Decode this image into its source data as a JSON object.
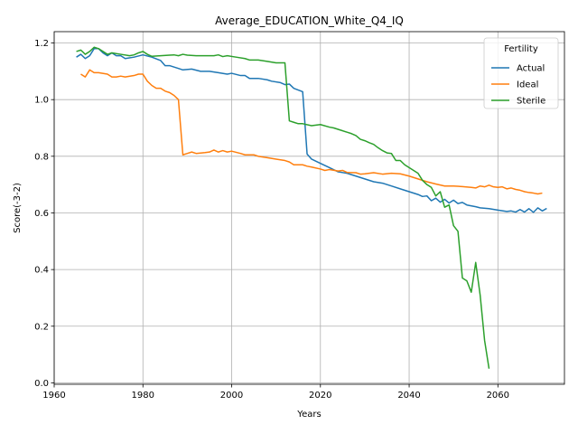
{
  "chart_data": {
    "type": "line",
    "title": "Average_EDUCATION_White_Q4_IQ",
    "xlabel": "Years",
    "ylabel": "Score(-3-2)",
    "xlim": [
      1960,
      2075
    ],
    "ylim": [
      -0.005,
      1.24
    ],
    "xticks": [
      1960,
      1980,
      2000,
      2020,
      2040,
      2060
    ],
    "yticks": [
      0.0,
      0.2,
      0.4,
      0.6,
      0.8,
      1.0,
      1.2
    ],
    "grid": true,
    "legend": {
      "title": "Fertility",
      "placement": "top-right"
    },
    "series": [
      {
        "name": "Actual",
        "color": "#1f77b4",
        "points": [
          [
            1965,
            1.15
          ],
          [
            1966,
            1.16
          ],
          [
            1967,
            1.145
          ],
          [
            1968,
            1.155
          ],
          [
            1969,
            1.18
          ],
          [
            1970,
            1.18
          ],
          [
            1971,
            1.165
          ],
          [
            1972,
            1.155
          ],
          [
            1973,
            1.165
          ],
          [
            1974,
            1.155
          ],
          [
            1975,
            1.155
          ],
          [
            1976,
            1.145
          ],
          [
            1978,
            1.15
          ],
          [
            1980,
            1.158
          ],
          [
            1982,
            1.15
          ],
          [
            1984,
            1.138
          ],
          [
            1985,
            1.12
          ],
          [
            1986,
            1.12
          ],
          [
            1988,
            1.11
          ],
          [
            1989,
            1.105
          ],
          [
            1991,
            1.108
          ],
          [
            1993,
            1.1
          ],
          [
            1995,
            1.1
          ],
          [
            1997,
            1.095
          ],
          [
            1999,
            1.09
          ],
          [
            2000,
            1.093
          ],
          [
            2002,
            1.085
          ],
          [
            2003,
            1.085
          ],
          [
            2004,
            1.075
          ],
          [
            2006,
            1.075
          ],
          [
            2008,
            1.07
          ],
          [
            2009,
            1.065
          ],
          [
            2011,
            1.06
          ],
          [
            2012,
            1.053
          ],
          [
            2013,
            1.055
          ],
          [
            2014,
            1.04
          ],
          [
            2016,
            1.028
          ],
          [
            2017,
            0.808
          ],
          [
            2018,
            0.79
          ],
          [
            2020,
            0.775
          ],
          [
            2022,
            0.76
          ],
          [
            2024,
            0.745
          ],
          [
            2026,
            0.74
          ],
          [
            2028,
            0.73
          ],
          [
            2030,
            0.72
          ],
          [
            2032,
            0.71
          ],
          [
            2034,
            0.705
          ],
          [
            2036,
            0.695
          ],
          [
            2038,
            0.685
          ],
          [
            2040,
            0.675
          ],
          [
            2042,
            0.665
          ],
          [
            2043,
            0.658
          ],
          [
            2044,
            0.66
          ],
          [
            2045,
            0.643
          ],
          [
            2046,
            0.652
          ],
          [
            2047,
            0.638
          ],
          [
            2048,
            0.648
          ],
          [
            2049,
            0.635
          ],
          [
            2050,
            0.645
          ],
          [
            2051,
            0.633
          ],
          [
            2052,
            0.637
          ],
          [
            2053,
            0.628
          ],
          [
            2055,
            0.622
          ],
          [
            2056,
            0.618
          ],
          [
            2058,
            0.615
          ],
          [
            2060,
            0.61
          ],
          [
            2062,
            0.605
          ],
          [
            2063,
            0.607
          ],
          [
            2064,
            0.603
          ],
          [
            2065,
            0.612
          ],
          [
            2066,
            0.603
          ],
          [
            2067,
            0.615
          ],
          [
            2068,
            0.602
          ],
          [
            2069,
            0.618
          ],
          [
            2070,
            0.607
          ],
          [
            2071,
            0.616
          ]
        ]
      },
      {
        "name": "Ideal",
        "color": "#ff7f0e",
        "points": [
          [
            1966,
            1.09
          ],
          [
            1967,
            1.08
          ],
          [
            1968,
            1.105
          ],
          [
            1969,
            1.095
          ],
          [
            1970,
            1.095
          ],
          [
            1972,
            1.09
          ],
          [
            1973,
            1.08
          ],
          [
            1974,
            1.08
          ],
          [
            1975,
            1.083
          ],
          [
            1976,
            1.08
          ],
          [
            1978,
            1.085
          ],
          [
            1979,
            1.09
          ],
          [
            1980,
            1.09
          ],
          [
            1981,
            1.065
          ],
          [
            1982,
            1.05
          ],
          [
            1983,
            1.04
          ],
          [
            1984,
            1.04
          ],
          [
            1985,
            1.03
          ],
          [
            1986,
            1.025
          ],
          [
            1987,
            1.015
          ],
          [
            1988,
            1.0
          ],
          [
            1989,
            0.805
          ],
          [
            1990,
            0.81
          ],
          [
            1991,
            0.815
          ],
          [
            1992,
            0.81
          ],
          [
            1994,
            0.813
          ],
          [
            1995,
            0.815
          ],
          [
            1996,
            0.822
          ],
          [
            1997,
            0.815
          ],
          [
            1998,
            0.82
          ],
          [
            1999,
            0.815
          ],
          [
            2000,
            0.818
          ],
          [
            2002,
            0.81
          ],
          [
            2003,
            0.805
          ],
          [
            2005,
            0.805
          ],
          [
            2006,
            0.8
          ],
          [
            2008,
            0.795
          ],
          [
            2010,
            0.79
          ],
          [
            2012,
            0.785
          ],
          [
            2013,
            0.78
          ],
          [
            2014,
            0.77
          ],
          [
            2016,
            0.77
          ],
          [
            2017,
            0.765
          ],
          [
            2018,
            0.762
          ],
          [
            2020,
            0.755
          ],
          [
            2021,
            0.75
          ],
          [
            2022,
            0.753
          ],
          [
            2024,
            0.748
          ],
          [
            2025,
            0.75
          ],
          [
            2026,
            0.743
          ],
          [
            2028,
            0.742
          ],
          [
            2029,
            0.737
          ],
          [
            2030,
            0.738
          ],
          [
            2032,
            0.742
          ],
          [
            2034,
            0.737
          ],
          [
            2036,
            0.74
          ],
          [
            2038,
            0.738
          ],
          [
            2040,
            0.73
          ],
          [
            2042,
            0.72
          ],
          [
            2044,
            0.71
          ],
          [
            2046,
            0.702
          ],
          [
            2048,
            0.695
          ],
          [
            2050,
            0.695
          ],
          [
            2052,
            0.693
          ],
          [
            2054,
            0.69
          ],
          [
            2055,
            0.688
          ],
          [
            2056,
            0.695
          ],
          [
            2057,
            0.692
          ],
          [
            2058,
            0.698
          ],
          [
            2059,
            0.692
          ],
          [
            2060,
            0.69
          ],
          [
            2061,
            0.692
          ],
          [
            2062,
            0.685
          ],
          [
            2063,
            0.688
          ],
          [
            2064,
            0.683
          ],
          [
            2065,
            0.68
          ],
          [
            2066,
            0.675
          ],
          [
            2067,
            0.672
          ],
          [
            2068,
            0.67
          ],
          [
            2069,
            0.667
          ],
          [
            2070,
            0.67
          ]
        ]
      },
      {
        "name": "Sterile",
        "color": "#2ca02c",
        "points": [
          [
            1965,
            1.17
          ],
          [
            1966,
            1.175
          ],
          [
            1967,
            1.16
          ],
          [
            1968,
            1.17
          ],
          [
            1969,
            1.185
          ],
          [
            1970,
            1.18
          ],
          [
            1971,
            1.17
          ],
          [
            1972,
            1.16
          ],
          [
            1973,
            1.165
          ],
          [
            1975,
            1.16
          ],
          [
            1977,
            1.155
          ],
          [
            1978,
            1.158
          ],
          [
            1979,
            1.165
          ],
          [
            1980,
            1.17
          ],
          [
            1981,
            1.16
          ],
          [
            1982,
            1.153
          ],
          [
            1984,
            1.155
          ],
          [
            1986,
            1.157
          ],
          [
            1987,
            1.158
          ],
          [
            1988,
            1.155
          ],
          [
            1989,
            1.16
          ],
          [
            1990,
            1.157
          ],
          [
            1992,
            1.155
          ],
          [
            1994,
            1.155
          ],
          [
            1996,
            1.155
          ],
          [
            1997,
            1.158
          ],
          [
            1998,
            1.152
          ],
          [
            1999,
            1.155
          ],
          [
            2001,
            1.15
          ],
          [
            2003,
            1.145
          ],
          [
            2004,
            1.14
          ],
          [
            2006,
            1.14
          ],
          [
            2008,
            1.135
          ],
          [
            2010,
            1.13
          ],
          [
            2012,
            1.13
          ],
          [
            2013,
            0.925
          ],
          [
            2014,
            0.92
          ],
          [
            2015,
            0.915
          ],
          [
            2016,
            0.915
          ],
          [
            2018,
            0.908
          ],
          [
            2020,
            0.912
          ],
          [
            2022,
            0.903
          ],
          [
            2023,
            0.9
          ],
          [
            2025,
            0.89
          ],
          [
            2026,
            0.885
          ],
          [
            2027,
            0.88
          ],
          [
            2028,
            0.873
          ],
          [
            2029,
            0.86
          ],
          [
            2030,
            0.855
          ],
          [
            2031,
            0.848
          ],
          [
            2032,
            0.842
          ],
          [
            2033,
            0.83
          ],
          [
            2034,
            0.82
          ],
          [
            2035,
            0.812
          ],
          [
            2036,
            0.81
          ],
          [
            2037,
            0.785
          ],
          [
            2038,
            0.785
          ],
          [
            2039,
            0.77
          ],
          [
            2040,
            0.76
          ],
          [
            2041,
            0.75
          ],
          [
            2042,
            0.74
          ],
          [
            2043,
            0.715
          ],
          [
            2044,
            0.7
          ],
          [
            2045,
            0.69
          ],
          [
            2046,
            0.66
          ],
          [
            2047,
            0.675
          ],
          [
            2048,
            0.62
          ],
          [
            2049,
            0.628
          ],
          [
            2050,
            0.555
          ],
          [
            2051,
            0.535
          ],
          [
            2052,
            0.37
          ],
          [
            2053,
            0.36
          ],
          [
            2054,
            0.32
          ],
          [
            2055,
            0.425
          ],
          [
            2056,
            0.31
          ],
          [
            2057,
            0.15
          ],
          [
            2058,
            0.05
          ]
        ]
      }
    ]
  }
}
